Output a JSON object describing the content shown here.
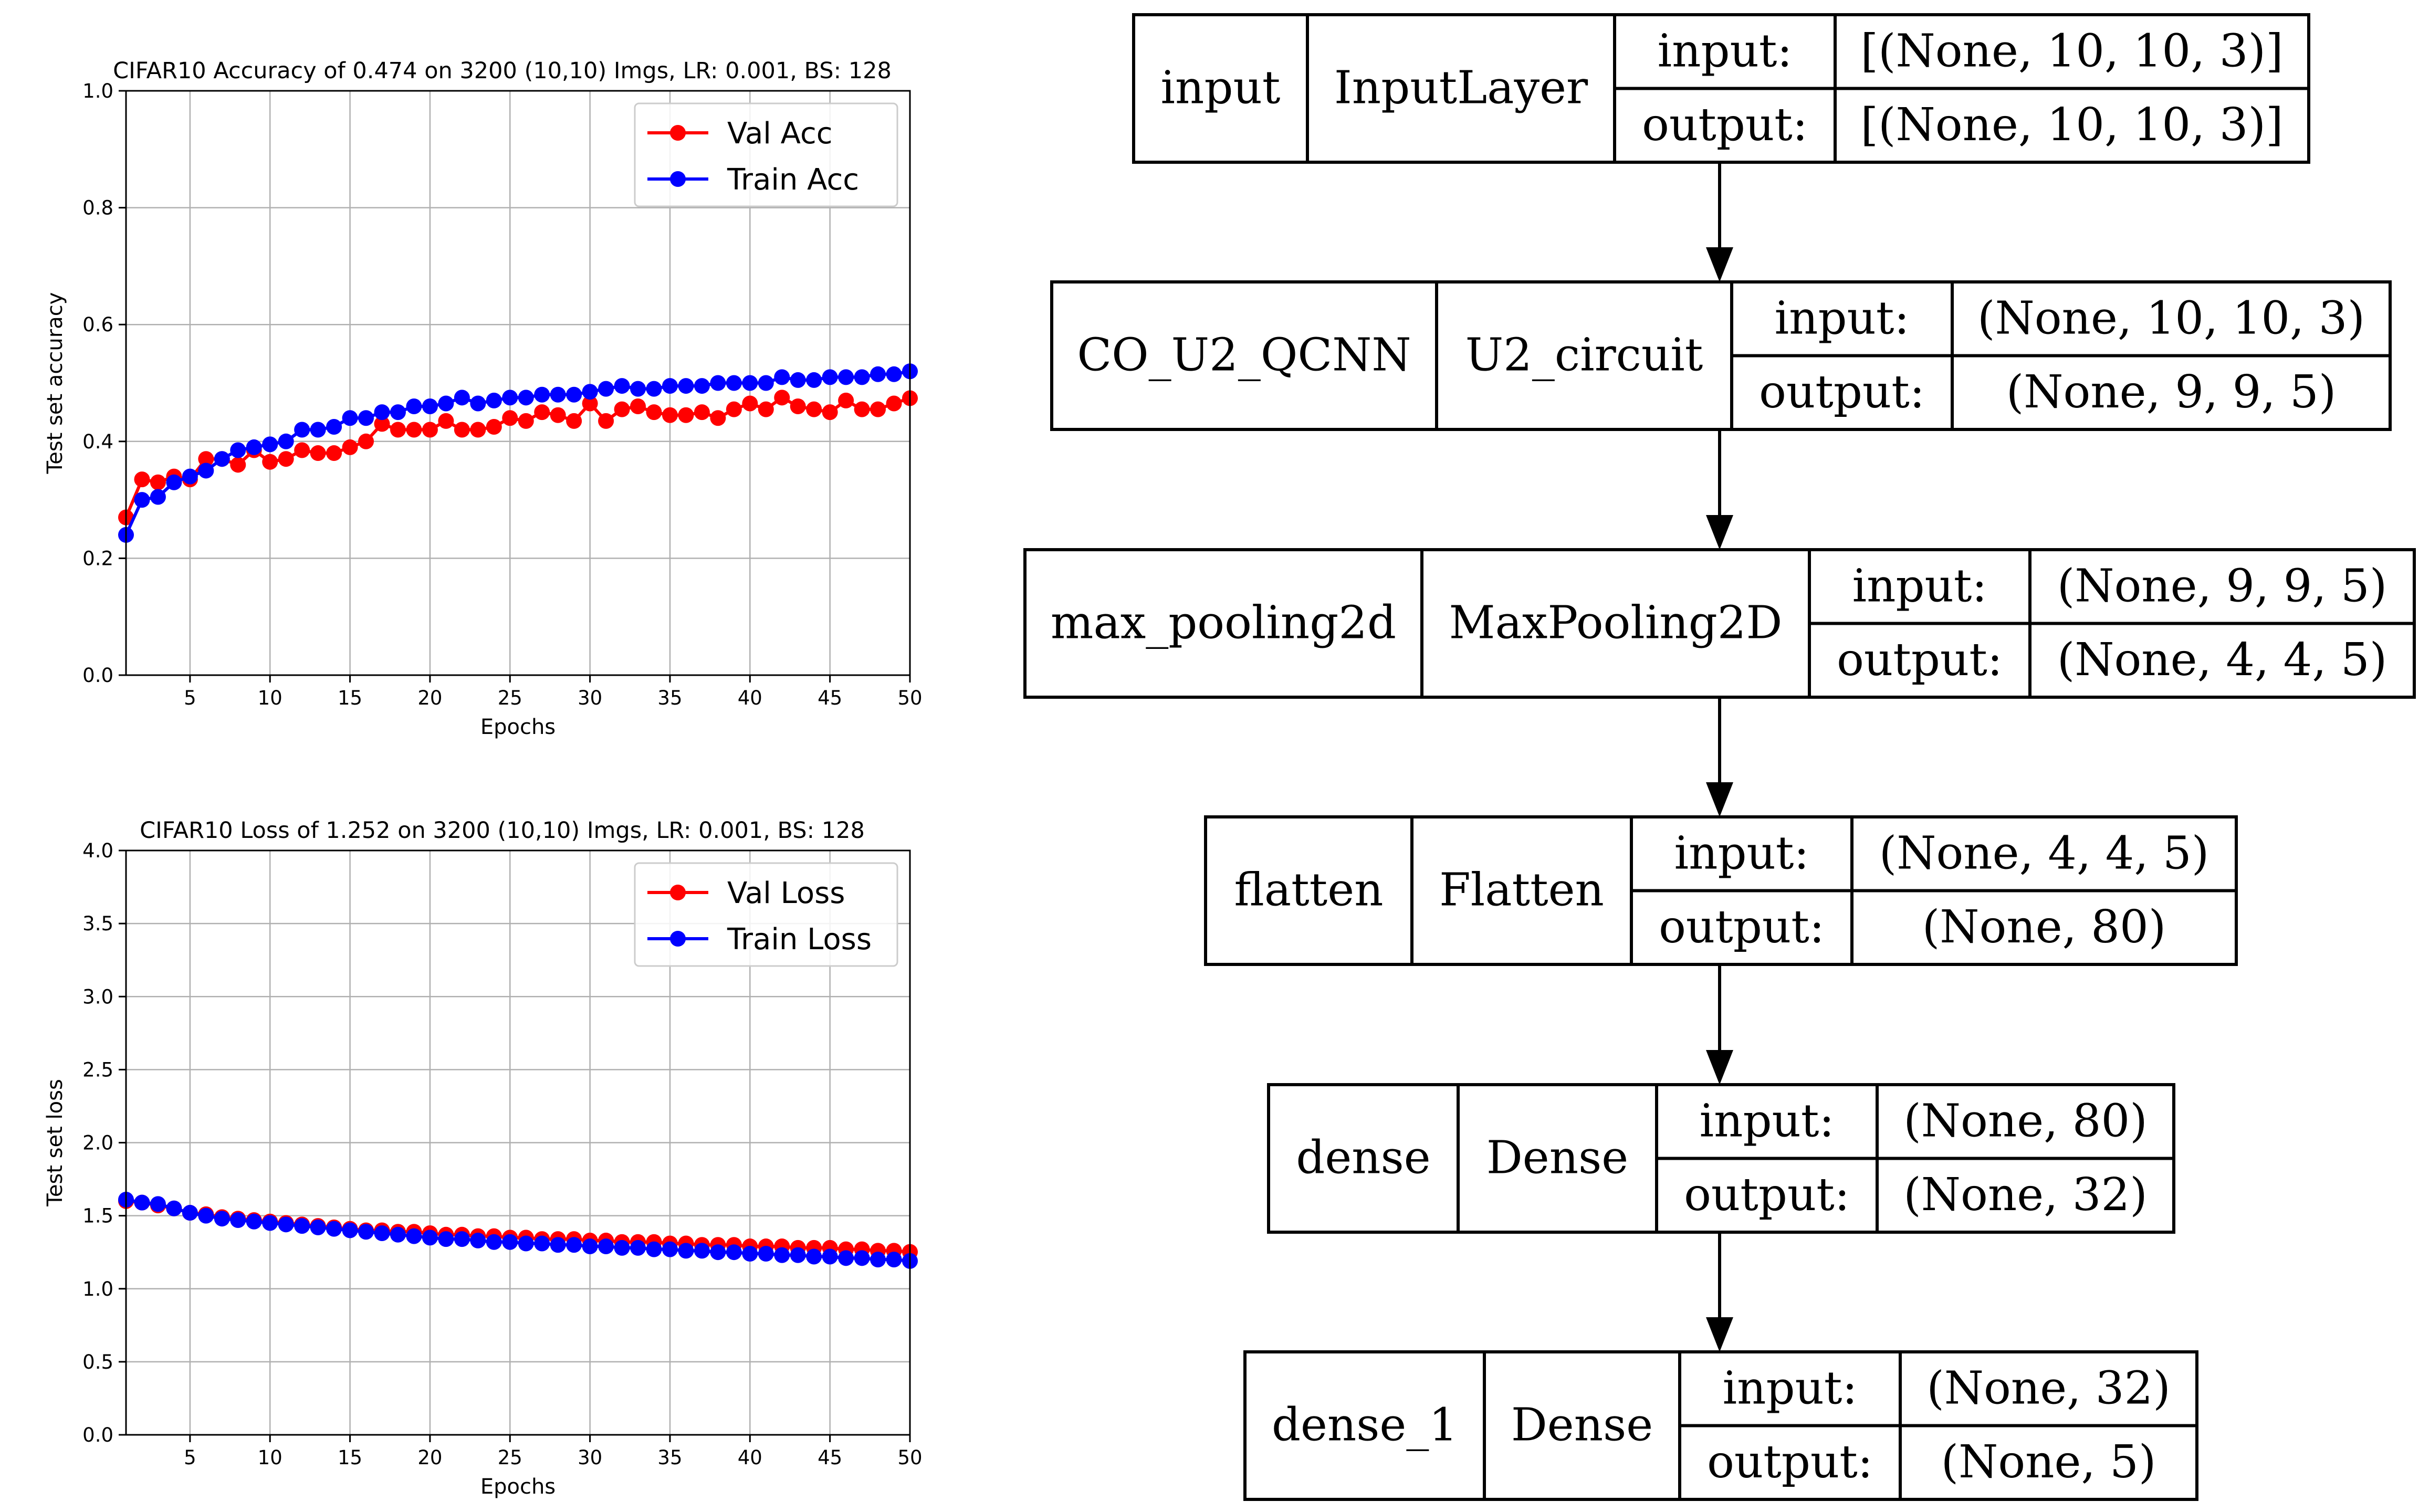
{
  "chart_data": [
    {
      "type": "line",
      "title": "CIFAR10 Accuracy of 0.474 on 3200 (10,10) Imgs, LR: 0.001, BS: 128",
      "xlabel": "Epochs",
      "ylabel": "Test set accuracy",
      "xlim": [
        1,
        50
      ],
      "ylim": [
        0.0,
        1.0
      ],
      "xticks": [
        5,
        10,
        15,
        20,
        25,
        30,
        35,
        40,
        45,
        50
      ],
      "yticks": [
        0.0,
        0.2,
        0.4,
        0.6,
        0.8,
        1.0
      ],
      "ytick_labels": [
        "0.0",
        "0.2",
        "0.4",
        "0.6",
        "0.8",
        "1.0"
      ],
      "grid": true,
      "legend_position": "top-right",
      "series": [
        {
          "name": "Val Acc",
          "color": "#ff0000",
          "values": [
            0.27,
            0.335,
            0.33,
            0.34,
            0.335,
            0.37,
            0.37,
            0.36,
            0.385,
            0.365,
            0.37,
            0.385,
            0.38,
            0.38,
            0.39,
            0.4,
            0.43,
            0.42,
            0.42,
            0.42,
            0.435,
            0.42,
            0.42,
            0.425,
            0.44,
            0.435,
            0.45,
            0.445,
            0.435,
            0.465,
            0.435,
            0.455,
            0.46,
            0.45,
            0.445,
            0.445,
            0.45,
            0.44,
            0.455,
            0.465,
            0.455,
            0.475,
            0.46,
            0.455,
            0.45,
            0.47,
            0.455,
            0.455,
            0.465,
            0.474
          ]
        },
        {
          "name": "Train Acc",
          "color": "#0000ff",
          "values": [
            0.24,
            0.3,
            0.305,
            0.33,
            0.34,
            0.35,
            0.37,
            0.385,
            0.39,
            0.395,
            0.4,
            0.42,
            0.42,
            0.425,
            0.44,
            0.44,
            0.45,
            0.45,
            0.46,
            0.46,
            0.465,
            0.475,
            0.465,
            0.47,
            0.475,
            0.475,
            0.48,
            0.48,
            0.48,
            0.485,
            0.49,
            0.495,
            0.49,
            0.49,
            0.495,
            0.495,
            0.495,
            0.5,
            0.5,
            0.5,
            0.5,
            0.51,
            0.505,
            0.505,
            0.51,
            0.51,
            0.51,
            0.515,
            0.515,
            0.52
          ]
        }
      ]
    },
    {
      "type": "line",
      "title": "CIFAR10 Loss of 1.252 on 3200 (10,10) Imgs, LR: 0.001, BS: 128",
      "xlabel": "Epochs",
      "ylabel": "Test set loss",
      "xlim": [
        1,
        50
      ],
      "ylim": [
        0.0,
        4.0
      ],
      "xticks": [
        5,
        10,
        15,
        20,
        25,
        30,
        35,
        40,
        45,
        50
      ],
      "yticks": [
        0.0,
        0.5,
        1.0,
        1.5,
        2.0,
        2.5,
        3.0,
        3.5,
        4.0
      ],
      "ytick_labels": [
        "0.0",
        "0.5",
        "1.0",
        "1.5",
        "2.0",
        "2.5",
        "3.0",
        "3.5",
        "4.0"
      ],
      "grid": true,
      "legend_position": "top-right",
      "series": [
        {
          "name": "Val Loss",
          "color": "#ff0000",
          "values": [
            1.6,
            1.59,
            1.57,
            1.55,
            1.52,
            1.51,
            1.49,
            1.48,
            1.47,
            1.46,
            1.45,
            1.44,
            1.43,
            1.42,
            1.41,
            1.4,
            1.4,
            1.39,
            1.39,
            1.38,
            1.37,
            1.37,
            1.36,
            1.36,
            1.35,
            1.35,
            1.34,
            1.34,
            1.34,
            1.33,
            1.33,
            1.32,
            1.32,
            1.32,
            1.31,
            1.31,
            1.3,
            1.3,
            1.3,
            1.29,
            1.29,
            1.29,
            1.28,
            1.28,
            1.28,
            1.27,
            1.27,
            1.26,
            1.26,
            1.252
          ]
        },
        {
          "name": "Train Loss",
          "color": "#0000ff",
          "values": [
            1.61,
            1.59,
            1.58,
            1.55,
            1.52,
            1.5,
            1.48,
            1.47,
            1.46,
            1.45,
            1.44,
            1.43,
            1.42,
            1.41,
            1.4,
            1.39,
            1.38,
            1.37,
            1.36,
            1.35,
            1.34,
            1.34,
            1.33,
            1.32,
            1.32,
            1.31,
            1.31,
            1.3,
            1.3,
            1.29,
            1.29,
            1.28,
            1.28,
            1.27,
            1.27,
            1.26,
            1.26,
            1.25,
            1.25,
            1.24,
            1.24,
            1.23,
            1.23,
            1.22,
            1.22,
            1.21,
            1.21,
            1.2,
            1.2,
            1.19
          ]
        }
      ]
    }
  ],
  "model_diagram": {
    "input_label": "input:",
    "output_label": "output:",
    "layers": [
      {
        "name": "input",
        "type": "InputLayer",
        "input": "[(None, 10, 10, 3)]",
        "output": "[(None, 10, 10, 3)]"
      },
      {
        "name": "CO_U2_QCNN",
        "type": "U2_circuit",
        "input": "(None, 10, 10, 3)",
        "output": "(None, 9, 9, 5)"
      },
      {
        "name": "max_pooling2d",
        "type": "MaxPooling2D",
        "input": "(None, 9, 9, 5)",
        "output": "(None, 4, 4, 5)"
      },
      {
        "name": "flatten",
        "type": "Flatten",
        "input": "(None, 4, 4, 5)",
        "output": "(None, 80)"
      },
      {
        "name": "dense",
        "type": "Dense",
        "input": "(None, 80)",
        "output": "(None, 32)"
      },
      {
        "name": "dense_1",
        "type": "Dense",
        "input": "(None, 32)",
        "output": "(None, 5)"
      }
    ]
  }
}
